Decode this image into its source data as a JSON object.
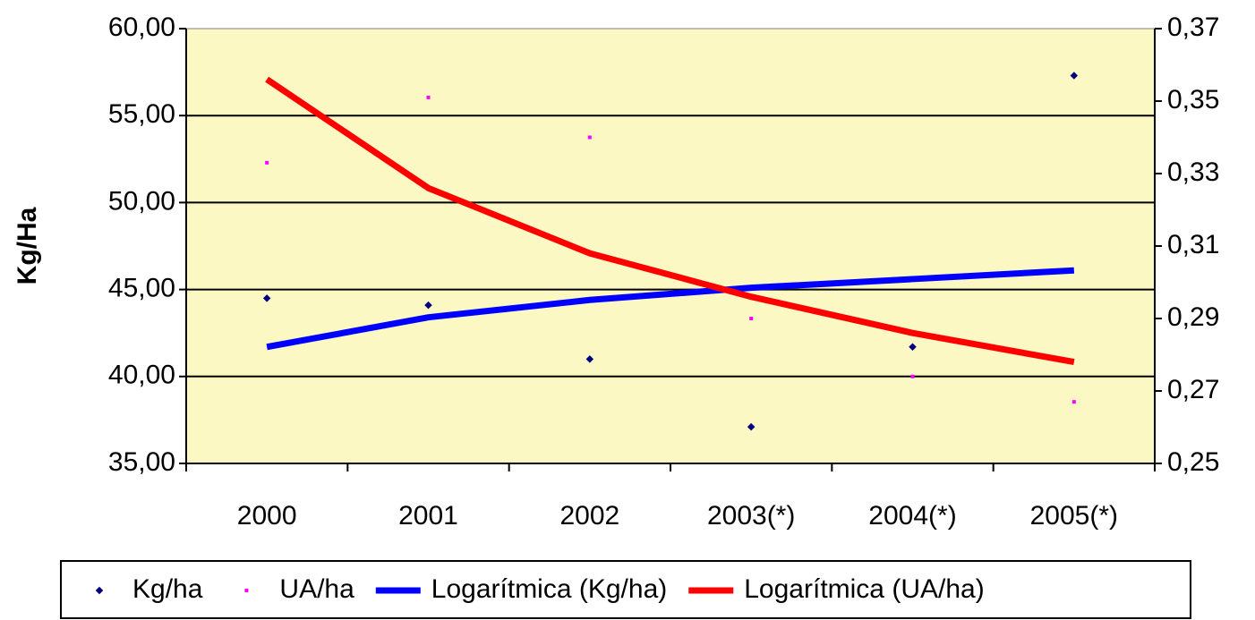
{
  "chart_data": {
    "type": "line",
    "y_label": "Kg/Ha",
    "categories": [
      "2000",
      "2001",
      "2002",
      "2003(*)",
      "2004(*)",
      "2005(*)"
    ],
    "series": [
      {
        "name": "Kg/ha",
        "color": "#000080",
        "mark": "point",
        "values": [
          44.5,
          44.1,
          41.0,
          37.1,
          41.7,
          57.3
        ]
      },
      {
        "name": "UA/ha",
        "color": "#ff00ff",
        "mark": "point",
        "axis": "y2",
        "values": [
          0.333,
          0.351,
          0.34,
          0.29,
          0.274,
          0.267
        ]
      },
      {
        "name": "Logarítmica (Kg/ha)",
        "color": "#0000ff",
        "mark": "line",
        "values": [
          41.7,
          43.4,
          44.4,
          45.1,
          45.6,
          46.1
        ]
      },
      {
        "name": "Logarítmica (UA/ha)",
        "color": "#ff0000",
        "mark": "line",
        "axis": "y2",
        "values": [
          0.356,
          0.326,
          0.308,
          0.296,
          0.286,
          0.278
        ]
      }
    ],
    "ylim": [
      35,
      60
    ],
    "yticks": [
      {
        "value": 35,
        "label": "35,00"
      },
      {
        "value": 40,
        "label": "40,00"
      },
      {
        "value": 45,
        "label": "45,00"
      },
      {
        "value": 50,
        "label": "50,00"
      },
      {
        "value": 55,
        "label": "55,00"
      },
      {
        "value": 60,
        "label": "60,00"
      }
    ],
    "y2lim": [
      0.25,
      0.37
    ],
    "y2ticks": [
      {
        "value": 0.25,
        "label": "0,25"
      },
      {
        "value": 0.27,
        "label": "0,27"
      },
      {
        "value": 0.29,
        "label": "0,29"
      },
      {
        "value": 0.31,
        "label": "0,31"
      },
      {
        "value": 0.33,
        "label": "0,33"
      },
      {
        "value": 0.35,
        "label": "0,35"
      },
      {
        "value": 0.37,
        "label": "0,37"
      }
    ],
    "grid": true,
    "legend": "bottom",
    "plot_background": "#fcf8c4"
  }
}
